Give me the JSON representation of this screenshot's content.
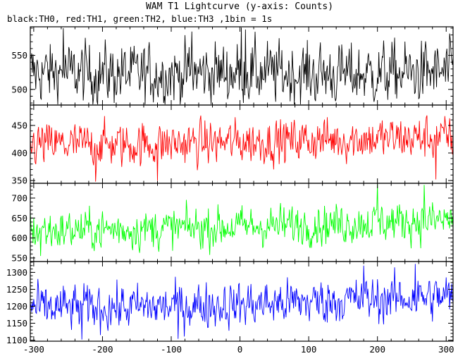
{
  "chart_data": {
    "type": "line",
    "title": "WAM T1 Lightcurve (y-axis: Counts)",
    "subtitle": "black:TH0, red:TH1, green:TH2, blue:TH3 ,1bin = 1s",
    "ylabel": "Counts",
    "xlim": [
      -305,
      310
    ],
    "xticks": [
      -300,
      -200,
      -100,
      0,
      100,
      200,
      300
    ],
    "grid": false,
    "bin_seconds": 1,
    "panels": [
      {
        "series_name": "TH0",
        "color": "#000000",
        "ylim": [
          477,
          592
        ],
        "yticks": [
          500,
          550
        ],
        "baseline": [
          [
            -300,
            525
          ],
          [
            -150,
            522
          ],
          [
            0,
            525
          ],
          [
            150,
            522
          ],
          [
            300,
            525
          ]
        ],
        "noise_amplitude": 27,
        "spikes": [
          [
            -257,
            590
          ],
          [
            -70,
            585
          ],
          [
            2,
            592
          ],
          [
            8,
            588
          ]
        ]
      },
      {
        "series_name": "TH1",
        "color": "#ff0000",
        "ylim": [
          345,
          487
        ],
        "yticks": [
          350,
          400,
          450
        ],
        "baseline": [
          [
            -300,
            415
          ],
          [
            -150,
            415
          ],
          [
            0,
            420
          ],
          [
            150,
            425
          ],
          [
            300,
            428
          ]
        ],
        "noise_amplitude": 24,
        "spikes": [
          [
            -210,
            348
          ],
          [
            -120,
            350
          ],
          [
            285,
            352
          ]
        ]
      },
      {
        "series_name": "TH2",
        "color": "#00ff00",
        "ylim": [
          541,
          737
        ],
        "yticks": [
          550,
          600,
          650,
          700
        ],
        "baseline": [
          [
            -300,
            618
          ],
          [
            -150,
            622
          ],
          [
            0,
            628
          ],
          [
            150,
            636
          ],
          [
            300,
            645
          ]
        ],
        "noise_amplitude": 30,
        "spikes": [
          [
            -290,
            555
          ],
          [
            200,
            735
          ],
          [
            268,
            733
          ]
        ]
      },
      {
        "series_name": "TH3",
        "color": "#0000ff",
        "ylim": [
          1097,
          1332
        ],
        "yticks": [
          1100,
          1150,
          1200,
          1250,
          1300
        ],
        "baseline": [
          [
            -300,
            1195
          ],
          [
            -150,
            1197
          ],
          [
            0,
            1205
          ],
          [
            150,
            1218
          ],
          [
            300,
            1228
          ]
        ],
        "noise_amplitude": 40,
        "spikes": [
          [
            -230,
            1102
          ],
          [
            -90,
            1104
          ],
          [
            180,
            1320
          ],
          [
            255,
            1325
          ]
        ]
      }
    ]
  }
}
